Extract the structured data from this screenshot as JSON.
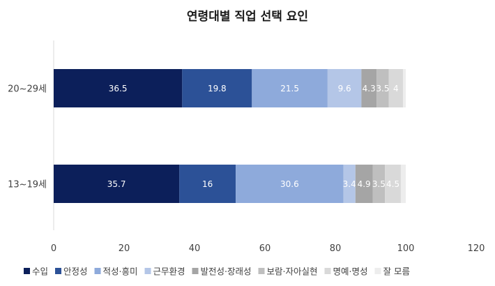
{
  "chart_data": {
    "type": "bar",
    "orientation": "horizontal",
    "stacked": true,
    "title": "연령대별 직업 선택 요인",
    "xlabel": "",
    "ylabel": "",
    "xlim": [
      0,
      120
    ],
    "xticks": [
      0,
      20,
      40,
      60,
      80,
      100,
      120
    ],
    "categories": [
      "20~29세",
      "13~19세"
    ],
    "series": [
      {
        "name": "수입",
        "values": [
          36.5,
          35.7
        ],
        "color": "#0c1f5a",
        "label_color": "#ffffff",
        "labels": [
          "36.5",
          "35.7"
        ]
      },
      {
        "name": "안정성",
        "values": [
          19.8,
          16
        ],
        "color": "#2c5197",
        "label_color": "#ffffff",
        "labels": [
          "19.8",
          "16"
        ]
      },
      {
        "name": "적성·흥미",
        "values": [
          21.5,
          30.6
        ],
        "color": "#8eaadb",
        "label_color": "#ffffff",
        "labels": [
          "21.5",
          "30.6"
        ]
      },
      {
        "name": "근무환경",
        "values": [
          9.6,
          3.4
        ],
        "color": "#b4c6e7",
        "label_color": "#ffffff",
        "labels": [
          "9.6",
          "3.4"
        ]
      },
      {
        "name": "발전성·장래성",
        "values": [
          4.3,
          4.9
        ],
        "color": "#a5a5a5",
        "label_color": "#ffffff",
        "labels": [
          "4.3",
          "4.9"
        ]
      },
      {
        "name": "보람·자아실현",
        "values": [
          3.5,
          3.5
        ],
        "color": "#bfbfbf",
        "label_color": "#ffffff",
        "labels": [
          "3.5",
          "3.5"
        ]
      },
      {
        "name": "명예·명성",
        "values": [
          4,
          4.5
        ],
        "color": "#d9d9d9",
        "label_color": "#ffffff",
        "labels": [
          "4",
          "4.5"
        ]
      },
      {
        "name": "잘 모름",
        "values": [
          0.8,
          1.4
        ],
        "color": "#ededed",
        "label_color": "#ffffff",
        "labels": [
          "",
          ""
        ]
      }
    ],
    "grid": false,
    "legend_position": "bottom"
  }
}
